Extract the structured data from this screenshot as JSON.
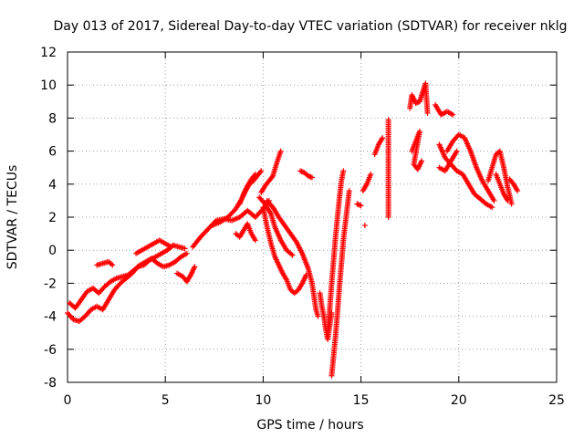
{
  "chart_data": {
    "type": "scatter",
    "title": "Day 013 of 2017, Sidereal Day-to-day VTEC variation (SDTVAR) for receiver nklg",
    "xlabel": "GPS time / hours",
    "ylabel": "SDTVAR / TECUs",
    "xlim": [
      0,
      25
    ],
    "ylim": [
      -8,
      12
    ],
    "xticks": [
      0,
      5,
      10,
      15,
      20,
      25
    ],
    "yticks": [
      -8,
      -6,
      -4,
      -2,
      0,
      2,
      4,
      6,
      8,
      10,
      12
    ],
    "grid": true,
    "legend": "none",
    "marker": "plus",
    "color": "#ff0000",
    "series": [
      {
        "values": [
          [
            0.0,
            -3.8
          ],
          [
            0.3,
            -4.2
          ],
          [
            0.6,
            -4.3
          ],
          [
            0.9,
            -4.0
          ],
          [
            1.2,
            -3.6
          ],
          [
            1.5,
            -3.4
          ],
          [
            1.8,
            -3.6
          ],
          [
            2.1,
            -3.0
          ],
          [
            2.4,
            -2.4
          ],
          [
            2.7,
            -2.0
          ],
          [
            3.0,
            -1.7
          ],
          [
            3.3,
            -1.4
          ],
          [
            3.6,
            -1.0
          ],
          [
            3.9,
            -0.9
          ],
          [
            4.2,
            -0.6
          ],
          [
            4.5,
            -0.4
          ],
          [
            4.8,
            -0.2
          ],
          [
            5.1,
            0.0
          ],
          [
            5.4,
            0.3
          ],
          [
            5.7,
            0.2
          ],
          [
            6.0,
            0.1
          ]
        ]
      },
      {
        "values": [
          [
            0.1,
            -3.2
          ],
          [
            0.4,
            -3.5
          ],
          [
            0.7,
            -3.0
          ],
          [
            1.0,
            -2.5
          ],
          [
            1.3,
            -2.3
          ],
          [
            1.6,
            -2.6
          ],
          [
            1.9,
            -2.2
          ],
          [
            2.2,
            -1.9
          ],
          [
            2.5,
            -1.7
          ],
          [
            2.8,
            -1.6
          ],
          [
            3.1,
            -1.5
          ],
          [
            3.4,
            -1.2
          ],
          [
            3.7,
            -0.9
          ],
          [
            4.0,
            -0.7
          ],
          [
            4.3,
            -0.5
          ],
          [
            4.6,
            -0.8
          ],
          [
            4.9,
            -1.0
          ],
          [
            5.2,
            -0.9
          ],
          [
            5.5,
            -0.7
          ],
          [
            5.8,
            -0.4
          ],
          [
            6.1,
            -0.2
          ]
        ]
      },
      {
        "values": [
          [
            1.5,
            -0.9
          ],
          [
            1.8,
            -0.8
          ],
          [
            2.1,
            -0.7
          ],
          [
            2.3,
            -0.9
          ]
        ]
      },
      {
        "values": [
          [
            3.5,
            -0.2
          ],
          [
            3.8,
            0.0
          ],
          [
            4.1,
            0.2
          ],
          [
            4.4,
            0.4
          ],
          [
            4.7,
            0.6
          ],
          [
            5.0,
            0.4
          ],
          [
            5.3,
            0.2
          ]
        ]
      },
      {
        "values": [
          [
            5.6,
            -1.4
          ],
          [
            5.9,
            -1.6
          ],
          [
            6.1,
            -1.9
          ],
          [
            6.3,
            -1.5
          ],
          [
            6.5,
            -1.0
          ]
        ]
      },
      {
        "values": [
          [
            6.4,
            0.2
          ],
          [
            6.8,
            0.8
          ],
          [
            7.2,
            1.3
          ],
          [
            7.6,
            1.8
          ],
          [
            8.0,
            1.9
          ],
          [
            8.4,
            1.8
          ],
          [
            8.8,
            2.0
          ],
          [
            9.2,
            2.4
          ],
          [
            9.6,
            2.0
          ],
          [
            10.0,
            2.5
          ],
          [
            10.3,
            3.0
          ]
        ]
      },
      {
        "values": [
          [
            7.4,
            1.5
          ],
          [
            7.8,
            1.7
          ],
          [
            8.2,
            2.0
          ],
          [
            8.6,
            2.5
          ],
          [
            8.9,
            3.1
          ],
          [
            9.1,
            3.6
          ],
          [
            9.3,
            4.0
          ],
          [
            9.5,
            4.2
          ],
          [
            9.7,
            4.5
          ],
          [
            9.9,
            4.8
          ]
        ]
      },
      {
        "values": [
          [
            8.8,
            2.8
          ],
          [
            9.0,
            3.4
          ],
          [
            9.2,
            3.9
          ],
          [
            9.4,
            4.3
          ],
          [
            9.6,
            4.6
          ]
        ]
      },
      {
        "values": [
          [
            8.6,
            1.0
          ],
          [
            8.8,
            0.8
          ],
          [
            9.0,
            1.2
          ],
          [
            9.2,
            1.6
          ],
          [
            9.4,
            1.0
          ],
          [
            9.6,
            0.6
          ]
        ]
      },
      {
        "values": [
          [
            9.9,
            3.5
          ],
          [
            10.1,
            3.9
          ],
          [
            10.3,
            4.2
          ],
          [
            10.5,
            4.5
          ],
          [
            10.7,
            5.3
          ],
          [
            10.9,
            6.0
          ]
        ]
      },
      {
        "values": [
          [
            10.0,
            2.6
          ],
          [
            10.2,
            1.4
          ],
          [
            10.4,
            0.4
          ],
          [
            10.6,
            -0.4
          ],
          [
            10.8,
            -0.9
          ],
          [
            11.0,
            -1.4
          ],
          [
            11.2,
            -1.8
          ],
          [
            11.4,
            -2.4
          ],
          [
            11.6,
            -2.6
          ],
          [
            11.8,
            -2.4
          ],
          [
            12.0,
            -2.0
          ],
          [
            12.2,
            -1.5
          ]
        ]
      },
      {
        "values": [
          [
            10.2,
            3.0
          ],
          [
            10.5,
            2.6
          ],
          [
            10.8,
            2.0
          ],
          [
            11.1,
            1.5
          ],
          [
            11.4,
            1.0
          ],
          [
            11.7,
            0.5
          ],
          [
            12.0,
            -0.2
          ],
          [
            12.3,
            -1.1
          ],
          [
            12.5,
            -2.0
          ],
          [
            12.6,
            -2.8
          ],
          [
            12.7,
            -3.6
          ],
          [
            12.8,
            -4.0
          ]
        ]
      },
      {
        "values": [
          [
            9.8,
            3.2
          ],
          [
            10.1,
            2.8
          ],
          [
            10.4,
            2.2
          ],
          [
            10.6,
            1.4
          ],
          [
            10.9,
            0.6
          ],
          [
            11.2,
            0.0
          ],
          [
            11.5,
            -0.3
          ]
        ]
      },
      {
        "values": [
          [
            11.9,
            4.8
          ],
          [
            12.1,
            4.7
          ],
          [
            12.3,
            4.5
          ],
          [
            12.5,
            4.4
          ]
        ]
      },
      {
        "values": [
          [
            12.9,
            -2.6
          ],
          [
            13.0,
            -3.4
          ],
          [
            13.1,
            -4.0
          ],
          [
            13.2,
            -4.8
          ],
          [
            13.3,
            -5.4
          ],
          [
            13.4,
            -4.6
          ],
          [
            13.5,
            -3.8
          ]
        ]
      },
      {
        "values": [
          [
            13.3,
            -4.8
          ],
          [
            13.4,
            -3.6
          ],
          [
            13.5,
            -2.0
          ],
          [
            13.6,
            -0.6
          ],
          [
            13.7,
            0.8
          ],
          [
            13.8,
            2.0
          ],
          [
            13.9,
            3.2
          ],
          [
            14.0,
            4.2
          ],
          [
            14.1,
            4.8
          ]
        ]
      },
      {
        "values": [
          [
            13.5,
            -7.6
          ],
          [
            13.6,
            -6.4
          ],
          [
            13.7,
            -5.2
          ],
          [
            13.8,
            -3.8
          ],
          [
            13.9,
            -2.2
          ],
          [
            14.0,
            -0.8
          ],
          [
            14.1,
            0.6
          ],
          [
            14.2,
            1.6
          ],
          [
            14.3,
            2.6
          ],
          [
            14.4,
            3.6
          ]
        ]
      },
      {
        "values": [
          [
            14.8,
            2.8
          ],
          [
            15.0,
            2.7
          ]
        ]
      },
      {
        "values": [
          [
            15.1,
            3.6
          ],
          [
            15.3,
            4.0
          ],
          [
            15.5,
            4.6
          ]
        ]
      },
      {
        "values": [
          [
            15.2,
            1.5
          ]
        ]
      },
      {
        "values": [
          [
            15.7,
            5.8
          ],
          [
            15.9,
            6.4
          ],
          [
            16.1,
            6.8
          ]
        ]
      },
      {
        "values": [
          [
            16.4,
            7.9
          ],
          [
            16.4,
            6.7
          ],
          [
            16.4,
            3.9
          ],
          [
            16.4,
            2.0
          ]
        ]
      },
      {
        "values": [
          [
            17.6,
            6.0
          ],
          [
            17.8,
            6.6
          ],
          [
            18.0,
            7.2
          ],
          [
            17.7,
            5.2
          ],
          [
            17.9,
            4.9
          ],
          [
            18.1,
            5.4
          ]
        ]
      },
      {
        "values": [
          [
            17.5,
            8.6
          ],
          [
            17.6,
            9.4
          ],
          [
            17.8,
            8.9
          ],
          [
            18.0,
            9.0
          ],
          [
            18.3,
            10.1
          ],
          [
            18.4,
            8.3
          ]
        ]
      },
      {
        "values": [
          [
            18.8,
            8.8
          ],
          [
            19.1,
            8.2
          ],
          [
            19.4,
            8.4
          ],
          [
            19.7,
            8.2
          ]
        ]
      },
      {
        "values": [
          [
            19.0,
            6.4
          ],
          [
            19.3,
            5.6
          ],
          [
            19.6,
            5.2
          ],
          [
            19.9,
            4.8
          ],
          [
            20.2,
            4.6
          ],
          [
            20.5,
            4.0
          ],
          [
            20.8,
            3.4
          ],
          [
            21.1,
            3.1
          ],
          [
            21.4,
            2.8
          ],
          [
            21.7,
            2.6
          ]
        ]
      },
      {
        "values": [
          [
            19.4,
            6.0
          ],
          [
            19.7,
            6.6
          ],
          [
            20.0,
            7.0
          ],
          [
            20.3,
            6.8
          ],
          [
            20.6,
            6.0
          ],
          [
            20.9,
            5.0
          ],
          [
            21.2,
            4.2
          ],
          [
            21.5,
            3.6
          ],
          [
            21.8,
            3.0
          ]
        ]
      },
      {
        "values": [
          [
            19.0,
            5.0
          ],
          [
            19.3,
            4.8
          ],
          [
            19.6,
            5.4
          ],
          [
            19.9,
            6.0
          ]
        ]
      },
      {
        "values": [
          [
            21.5,
            4.2
          ],
          [
            21.7,
            5.0
          ],
          [
            21.9,
            5.8
          ],
          [
            22.1,
            6.0
          ],
          [
            22.3,
            5.0
          ],
          [
            22.5,
            3.8
          ],
          [
            22.7,
            2.8
          ]
        ]
      },
      {
        "values": [
          [
            21.9,
            4.6
          ],
          [
            22.1,
            4.0
          ],
          [
            22.3,
            3.4
          ],
          [
            22.5,
            3.0
          ]
        ]
      },
      {
        "values": [
          [
            22.6,
            4.3
          ],
          [
            22.8,
            4.0
          ],
          [
            23.0,
            3.6
          ]
        ]
      }
    ]
  }
}
